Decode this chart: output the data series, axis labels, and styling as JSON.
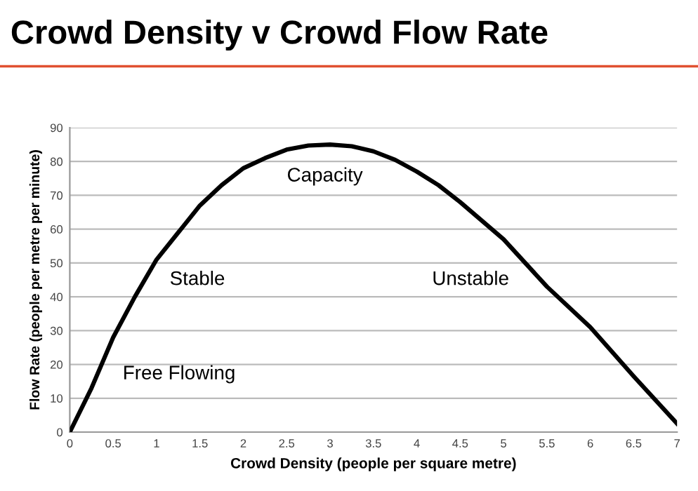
{
  "chart_data": {
    "type": "line",
    "title": "Crowd Density v Crowd Flow Rate",
    "xlabel": "Crowd Density (people per square metre)",
    "ylabel": "Flow Rate (people per metre per minute)",
    "x": [
      0,
      0.25,
      0.5,
      0.75,
      1,
      1.25,
      1.5,
      1.75,
      2,
      2.25,
      2.5,
      2.75,
      3,
      3.25,
      3.5,
      3.75,
      4,
      4.25,
      4.5,
      5,
      5.5,
      6,
      6.5,
      7
    ],
    "series": [
      {
        "color": "#000000",
        "values": [
          0,
          13,
          28,
          40,
          51,
          59,
          67,
          73,
          78,
          81,
          83.5,
          84.7,
          85,
          84.5,
          83,
          80.5,
          77,
          73,
          68,
          57,
          43,
          31,
          16.5,
          2.5
        ]
      }
    ],
    "xlim": [
      0,
      7
    ],
    "ylim": [
      0,
      90
    ],
    "xticks": [
      0,
      0.5,
      1,
      1.5,
      2,
      2.5,
      3,
      3.5,
      4,
      4.5,
      5,
      5.5,
      6,
      6.5,
      7
    ],
    "yticks": [
      0,
      10,
      20,
      30,
      40,
      50,
      60,
      70,
      80,
      90
    ],
    "grid": "y",
    "marker": "none",
    "line_style": "solid",
    "annotations": [
      "Free Flowing",
      "Stable",
      "Capacity",
      "Unstable"
    ]
  }
}
